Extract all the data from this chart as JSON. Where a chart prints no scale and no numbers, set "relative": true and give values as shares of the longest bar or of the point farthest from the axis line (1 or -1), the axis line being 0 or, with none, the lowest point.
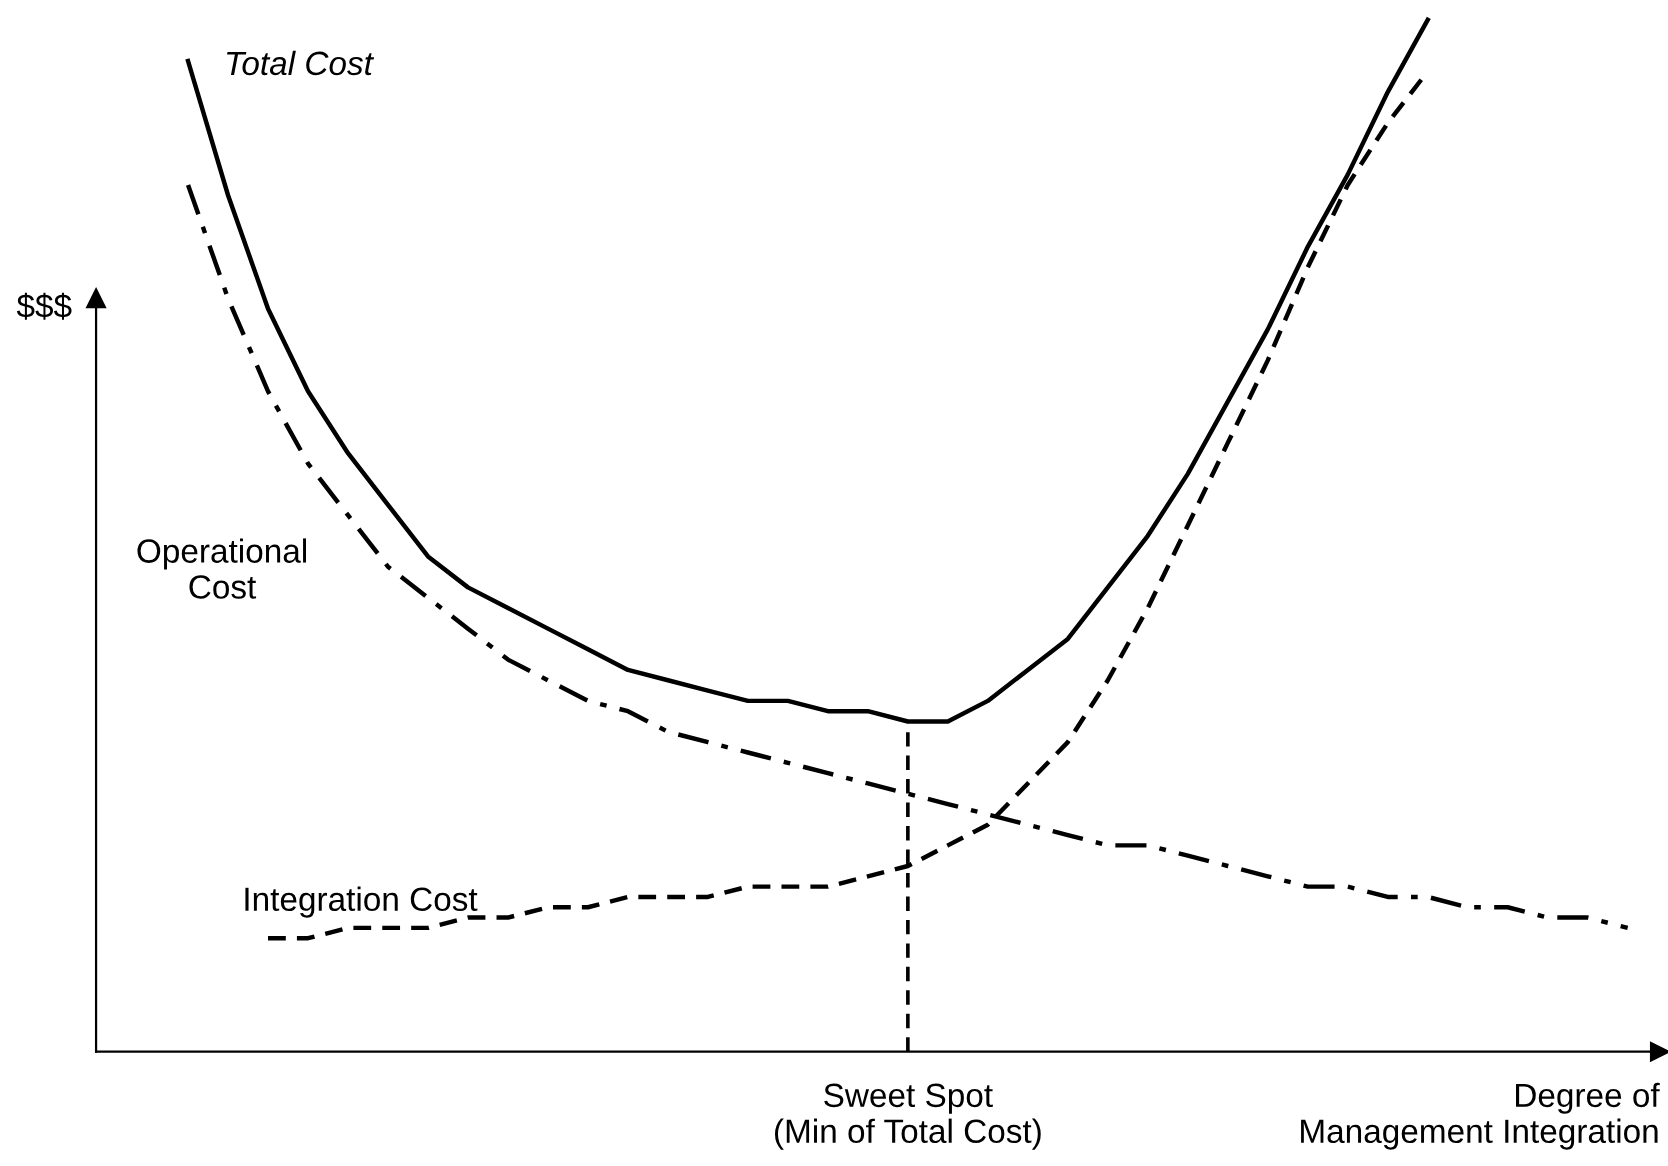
{
  "chart_data": {
    "type": "line",
    "relative": true,
    "ylabel": "$$$",
    "xlabel": "Degree of\nManagement Integration",
    "categories": [
      null,
      null,
      null,
      null,
      null,
      null,
      null,
      null,
      null,
      null,
      null,
      null,
      null,
      null,
      null,
      null,
      null,
      null,
      null,
      null,
      null,
      null,
      null,
      null,
      null,
      null,
      null,
      null,
      null,
      null,
      null,
      null,
      null,
      null,
      null,
      null,
      null
    ],
    "series": [
      {
        "name": "Total Cost",
        "color": "#000000",
        "line_style": "solid",
        "values": [
          0.96,
          0.83,
          0.72,
          0.64,
          0.58,
          0.53,
          0.48,
          0.45,
          0.43,
          0.41,
          0.39,
          0.37,
          0.36,
          0.35,
          0.34,
          0.34,
          0.33,
          0.33,
          0.32,
          0.32,
          0.34,
          0.37,
          0.4,
          0.45,
          0.5,
          0.56,
          0.63,
          0.7,
          0.78,
          0.85,
          0.93,
          1.0,
          null,
          null,
          null,
          null,
          null
        ]
      },
      {
        "name": "Operational\nCost",
        "color": "#000000",
        "line_style": "dashdot",
        "values": [
          0.84,
          0.73,
          0.64,
          0.57,
          0.52,
          0.47,
          0.44,
          0.41,
          0.38,
          0.36,
          0.34,
          0.33,
          0.31,
          0.3,
          0.29,
          0.28,
          0.27,
          0.26,
          0.25,
          0.24,
          0.23,
          0.22,
          0.21,
          0.2,
          0.2,
          0.19,
          0.18,
          0.17,
          0.16,
          0.16,
          0.15,
          0.15,
          0.14,
          0.14,
          0.13,
          0.13,
          0.12
        ]
      },
      {
        "name": "Integration Cost",
        "color": "#000000",
        "line_style": "dashed",
        "values": [
          null,
          null,
          0.11,
          0.11,
          0.12,
          0.12,
          0.12,
          0.13,
          0.13,
          0.14,
          0.14,
          0.15,
          0.15,
          0.15,
          0.16,
          0.16,
          0.16,
          0.17,
          0.18,
          0.2,
          0.22,
          0.26,
          0.3,
          0.36,
          0.43,
          0.51,
          0.59,
          0.67,
          0.76,
          0.84,
          0.9,
          0.95,
          null,
          null,
          null,
          null,
          null
        ]
      }
    ],
    "annotations": [
      "Sweet Spot\n(Min of Total Cost)"
    ],
    "grid": false,
    "legend": false
  }
}
